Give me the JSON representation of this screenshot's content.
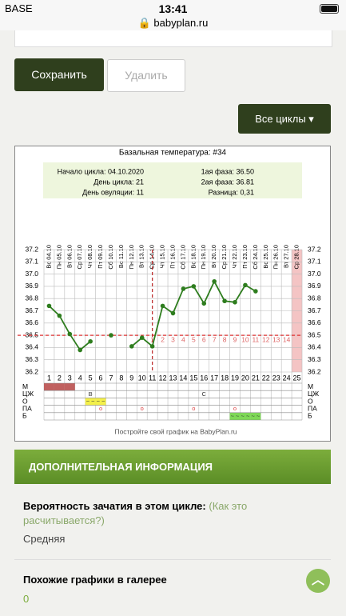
{
  "status_bar": {
    "carrier": "BASE",
    "time": "13:41",
    "url": "babyplan.ru"
  },
  "buttons": {
    "save": "Сохранить",
    "delete": "Удалить",
    "cycles": "Все циклы"
  },
  "chart_data": {
    "type": "line",
    "title": "Базальная температура: #34",
    "info": [
      "Начало цикла: 04.10.2020",
      "День цикла: 21",
      "День овуляции: 11",
      "1ая фаза: 36.50",
      "2ая фаза: 36.81",
      "Разница: 0,31"
    ],
    "dates": [
      "Вс 04.10",
      "Пн 05.10",
      "Вт 06.10",
      "Ср 07.10",
      "Чт 08.10",
      "Пт 09.10",
      "Сб 10.10",
      "Вс 11.10",
      "Пн 12.10",
      "Вт 13.10",
      "Ср 14.10",
      "Чт 15.10",
      "Пт 16.10",
      "Сб 17.10",
      "Вс 18.10",
      "Пн 19.10",
      "Вт 20.10",
      "Ср 21.10",
      "Чт 22.10",
      "Пт 23.10",
      "Сб 24.10",
      "Вс 25.10",
      "Пн 26.10",
      "Вт 27.10",
      "Ср 28.10"
    ],
    "x": [
      1,
      2,
      3,
      4,
      5,
      6,
      7,
      8,
      9,
      10,
      11,
      12,
      13,
      14,
      15,
      16,
      17,
      18,
      19,
      20,
      21,
      22,
      23,
      24,
      25
    ],
    "series": [
      {
        "color": "#2e7d1e",
        "values": [
          36.74,
          36.66,
          36.51,
          36.38,
          36.45,
          null,
          36.5,
          null,
          36.41,
          36.48,
          36.41,
          36.74,
          36.68,
          36.88,
          36.9,
          36.76,
          36.94,
          36.78,
          36.77,
          36.91,
          36.86,
          null,
          null,
          null,
          null
        ]
      }
    ],
    "ylim": [
      36.2,
      37.2
    ],
    "yticks": [
      36.2,
      36.3,
      36.4,
      36.5,
      36.6,
      36.7,
      36.8,
      36.9,
      {
        "value": 37,
        "label": "37.0"
      },
      37.1,
      37.2
    ],
    "grid": true,
    "coverline": 36.5,
    "ovulation_day": 11,
    "highlight_day": 25,
    "phase2_counts": [
      1,
      2,
      3,
      4,
      5,
      6,
      7,
      8,
      9,
      10,
      11,
      12,
      13,
      14
    ],
    "table": {
      "rows": [
        {
          "label": "М",
          "fill": "#c0605f",
          "days": [
            1,
            2,
            3
          ],
          "texts": []
        },
        {
          "label": "ЦЖ",
          "fill": null,
          "days": [],
          "texts": [
            {
              "day": 5,
              "text": "В"
            },
            {
              "day": 16,
              "text": "С"
            }
          ]
        },
        {
          "label": "О",
          "fill": "#f4f04a",
          "days": [
            5,
            6
          ],
          "texts": [
            {
              "day": 5,
              "text": "~ ~"
            },
            {
              "day": 6,
              "text": "~ ~"
            }
          ]
        },
        {
          "label": "ПА",
          "fill": null,
          "days": [],
          "texts": [
            {
              "day": 6,
              "text": "o"
            },
            {
              "day": 10,
              "text": "o"
            },
            {
              "day": 15,
              "text": "o"
            },
            {
              "day": 19,
              "text": "o"
            }
          ]
        },
        {
          "label": "Б",
          "fill": "#7ed957",
          "days": [
            19,
            20,
            21
          ],
          "texts": [
            {
              "day": 19,
              "text": "~ ~"
            },
            {
              "day": 20,
              "text": "~ ~"
            },
            {
              "day": 21,
              "text": "~ ~"
            }
          ]
        }
      ]
    },
    "footer": "Постройте свой график на BabyPlan.ru"
  },
  "info_section": {
    "header": "ДОПОЛНИТЕЛЬНАЯ ИНФОРМАЦИЯ",
    "probability_label": "Вероятность зачатия в этом цикле:",
    "probability_link_1": "(Как это",
    "probability_link_2": "расчитывается?)",
    "probability_value": "Средняя",
    "gallery_label": "Похожие графики в галерее",
    "gallery_count": 0
  }
}
